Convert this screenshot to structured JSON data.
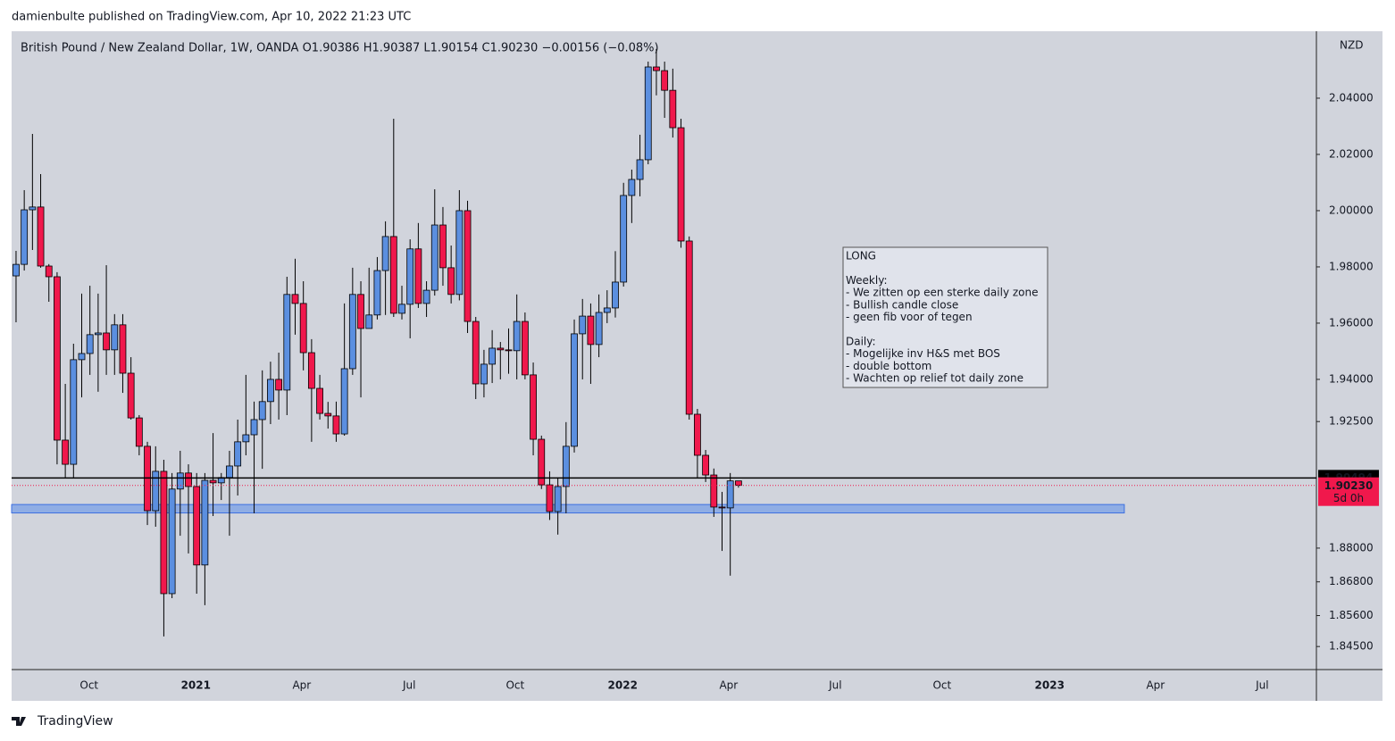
{
  "header": "damienbulte published on TradingView.com, Apr 10, 2022 21:23 UTC",
  "footer": "TradingView",
  "chart_data": {
    "type": "candlestick",
    "title": "British Pound / New Zealand Dollar, 1W, OANDA  O1.90386  H1.90387  L1.90154  C1.90230  −0.00156 (−0.08%)",
    "currency": "NZD",
    "up_color": "#5b8fe0",
    "down_color": "#f0184c",
    "open": [
      1.9768,
      1.9809,
      2.0003,
      2.0013,
      1.9803,
      1.9765,
      1.9184,
      1.9098,
      1.947,
      1.9492,
      1.9559,
      1.9565,
      1.9505,
      1.9594,
      1.9422,
      1.9263,
      1.9162,
      1.8933,
      1.9073,
      1.8638,
      1.901,
      1.9067,
      1.9019,
      1.874,
      1.9041,
      1.9032,
      1.9051,
      1.9092,
      1.9178,
      1.9203,
      1.9257,
      1.9321,
      1.94,
      1.9362,
      1.9702,
      1.967,
      1.9495,
      1.9368,
      1.9279,
      1.927,
      1.9206,
      1.9438,
      1.9702,
      1.9581,
      1.9629,
      1.9787,
      1.9908,
      1.9635,
      1.9667,
      1.9864,
      1.967,
      1.9717,
      1.9949,
      1.9797,
      1.9702,
      2.0,
      1.9606,
      1.9384,
      1.9454,
      1.9511,
      1.9505,
      1.9502,
      1.9606,
      1.9416,
      1.9187,
      1.9025,
      1.893,
      1.9019,
      1.9162,
      1.9562,
      1.9625,
      1.9524,
      1.9638,
      1.9654,
      1.9746,
      2.0054,
      2.0111,
      2.0181,
      2.0511,
      2.0498,
      2.0428,
      2.0295,
      1.9892,
      1.9276,
      1.913,
      1.906,
      1.8946,
      1.8943,
      1.9039
    ],
    "high": [
      1.9857,
      2.0073,
      2.0273,
      2.013,
      1.981,
      1.9781,
      1.9384,
      1.9527,
      1.9705,
      1.9733,
      1.9705,
      1.9806,
      1.9632,
      1.9632,
      1.9479,
      1.9273,
      1.9178,
      1.9162,
      1.9114,
      1.9067,
      1.9146,
      1.9098,
      1.9067,
      1.9067,
      1.9209,
      1.9067,
      1.9146,
      1.9257,
      1.9416,
      1.9321,
      1.9432,
      1.9463,
      1.9495,
      1.9765,
      1.9829,
      1.9749,
      1.9543,
      1.9416,
      1.932,
      1.9321,
      1.967,
      1.9797,
      1.9749,
      1.9797,
      1.9835,
      1.9962,
      2.0327,
      1.9733,
      1.9898,
      1.9956,
      1.9749,
      2.0076,
      2.0013,
      1.9876,
      2.0073,
      2.0035,
      1.9622,
      1.9505,
      1.9575,
      1.9533,
      1.9581,
      1.9702,
      1.9638,
      1.946,
      1.92,
      1.9073,
      1.9051,
      1.9248,
      1.9613,
      1.9686,
      1.967,
      1.9702,
      1.9717,
      1.9856,
      2.0099,
      2.0146,
      2.027,
      2.053,
      2.0575,
      2.053,
      2.0505,
      2.0327,
      1.9908,
      1.9295,
      1.9149,
      1.9083,
      1.9,
      1.9067,
      1.9039
    ],
    "low": [
      1.9603,
      1.9787,
      1.986,
      1.9797,
      1.9676,
      1.9098,
      1.9051,
      1.9051,
      1.9336,
      1.9416,
      1.9356,
      1.9416,
      1.9416,
      1.9352,
      1.9257,
      1.913,
      1.8882,
      1.8876,
      1.8486,
      1.8622,
      1.8844,
      1.8781,
      1.8638,
      1.8597,
      1.8914,
      1.8971,
      1.8844,
      1.8987,
      1.913,
      1.8924,
      1.9082,
      1.9241,
      1.9257,
      1.9273,
      1.9559,
      1.9432,
      1.9178,
      1.9257,
      1.9225,
      1.9178,
      1.92,
      1.9416,
      1.9336,
      1.9581,
      1.9613,
      1.9629,
      1.9622,
      1.9613,
      1.9546,
      1.9654,
      1.9622,
      1.9698,
      1.9733,
      1.967,
      1.9681,
      1.9565,
      1.933,
      1.9336,
      1.9387,
      1.94,
      1.942,
      1.94,
      1.94,
      1.913,
      1.901,
      1.89,
      1.8848,
      1.8924,
      1.914,
      1.94,
      1.9384,
      1.9479,
      1.96,
      1.962,
      1.973,
      1.9956,
      2.0051,
      2.0165,
      2.041,
      2.033,
      2.026,
      1.9868,
      1.9257,
      1.9051,
      1.9035,
      1.8911,
      1.879,
      1.8702,
      1.9015
    ],
    "close": [
      1.9809,
      2.0003,
      2.0013,
      1.9803,
      1.9765,
      1.9184,
      1.9098,
      1.947,
      1.9492,
      1.9559,
      1.9565,
      1.9505,
      1.9594,
      1.9422,
      1.9263,
      1.9162,
      1.8933,
      1.9073,
      1.8638,
      1.901,
      1.9067,
      1.9019,
      1.874,
      1.9041,
      1.9032,
      1.9051,
      1.9092,
      1.9178,
      1.9203,
      1.9257,
      1.9321,
      1.94,
      1.9362,
      1.9702,
      1.967,
      1.9495,
      1.9368,
      1.9279,
      1.927,
      1.9206,
      1.9438,
      1.9702,
      1.9581,
      1.9629,
      1.9787,
      1.9908,
      1.9635,
      1.9667,
      1.9864,
      1.967,
      1.9717,
      1.9949,
      1.9797,
      1.9702,
      2.0,
      1.9606,
      1.9384,
      1.9454,
      1.9511,
      1.9505,
      1.9502,
      1.9606,
      1.9416,
      1.9187,
      1.9025,
      1.893,
      1.9019,
      1.9162,
      1.9562,
      1.9625,
      1.9524,
      1.9638,
      1.9654,
      1.9746,
      2.0054,
      2.0111,
      2.0181,
      2.0511,
      2.0498,
      2.0428,
      2.0295,
      1.9892,
      1.9276,
      1.913,
      1.906,
      1.8946,
      1.8943,
      1.9039,
      1.9023
    ],
    "xlim": [
      -0.54,
      158.4
    ],
    "xticks": [
      {
        "value": 8.9,
        "label": "Oct"
      },
      {
        "value": 21.9,
        "label": "2021"
      },
      {
        "value": 34.8,
        "label": "Apr"
      },
      {
        "value": 47.9,
        "label": "Jul"
      },
      {
        "value": 60.8,
        "label": "Oct"
      },
      {
        "value": 73.9,
        "label": "2022"
      },
      {
        "value": 86.8,
        "label": "Apr"
      },
      {
        "value": 99.8,
        "label": "Jul"
      },
      {
        "value": 112.8,
        "label": "Oct"
      },
      {
        "value": 125.9,
        "label": "2023"
      },
      {
        "value": 138.8,
        "label": "Apr"
      },
      {
        "value": 151.8,
        "label": "Jul"
      }
    ],
    "ylim": [
      1.8368,
      2.0638
    ],
    "yticks": [
      {
        "value": 2.04,
        "label": "2.04000"
      },
      {
        "value": 2.02,
        "label": "2.02000"
      },
      {
        "value": 2.0,
        "label": "2.00000"
      },
      {
        "value": 1.98,
        "label": "1.98000"
      },
      {
        "value": 1.96,
        "label": "1.96000"
      },
      {
        "value": 1.94,
        "label": "1.94000"
      },
      {
        "value": 1.925,
        "label": "1.92500"
      },
      {
        "value": 1.88,
        "label": "1.88000"
      },
      {
        "value": 1.868,
        "label": "1.86800"
      },
      {
        "value": 1.856,
        "label": "1.85600"
      },
      {
        "value": 1.845,
        "label": "1.84500"
      }
    ],
    "hline": 1.90494,
    "last": {
      "value": 1.9023,
      "label": "1.90230",
      "countdown": "5d 0h"
    },
    "zone": {
      "top": 1.8955,
      "bottom": 1.8925,
      "end": 135
    },
    "annotation": [
      [
        "LONG"
      ],
      [
        "Weekly:",
        "- We zitten op een sterke daily zone",
        "- Bullish candle close",
        "- geen fib voor of tegen"
      ],
      [
        "Daily:",
        "- Mogelijke inv H&S met BOS",
        "- double bottom",
        "- Wachten op relief tot daily zone"
      ]
    ]
  }
}
